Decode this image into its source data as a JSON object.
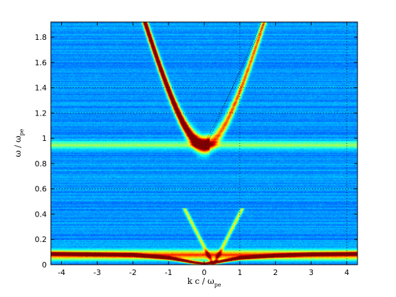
{
  "chart_data": {
    "type": "heatmap",
    "title": "",
    "xlabel": {
      "main": "k c / ω",
      "sub": "pe"
    },
    "ylabel": {
      "main": "ω / ω",
      "sub": "pe"
    },
    "xlim": [
      -4.3,
      4.3
    ],
    "ylim": [
      0,
      1.92
    ],
    "xticks": [
      -4,
      -3,
      -2,
      -1,
      0,
      1,
      2,
      3,
      4
    ],
    "yticks": [
      0,
      0.2,
      0.4,
      0.6,
      0.8,
      1,
      1.2,
      1.4,
      1.6,
      1.8
    ],
    "grid": {
      "dotted_x": [
        1,
        4
      ],
      "dotted_y": [
        0.6,
        1.2,
        1.4
      ]
    },
    "colormap": "jet",
    "features": [
      {
        "name": "em-branch",
        "kind": "hyperbola",
        "omega0": 0.95,
        "c": 1.0,
        "width": 0.06,
        "intensity": 0.95
      },
      {
        "name": "low-freq-branch",
        "kind": "curve",
        "points": [
          [
            -4.3,
            0.09
          ],
          [
            -2,
            0.08
          ],
          [
            -1,
            0.055
          ],
          [
            -0.3,
            0.02
          ],
          [
            0,
            0.01
          ],
          [
            0.4,
            0.025
          ],
          [
            1,
            0.055
          ],
          [
            2,
            0.075
          ],
          [
            3,
            0.085
          ],
          [
            4.3,
            0.09
          ]
        ],
        "width": 0.012,
        "intensity": 0.95
      },
      {
        "name": "low-band-glow",
        "kind": "band",
        "omega": 0.08,
        "width": 0.035,
        "intensity": 0.55
      },
      {
        "name": "plasma-band",
        "kind": "band",
        "omega": 0.95,
        "width": 0.03,
        "intensity": 0.25
      },
      {
        "name": "sound-cone",
        "kind": "lines",
        "slope": 0.55,
        "width": 0.03,
        "intensity": 0.35
      }
    ],
    "reference_lines": [
      {
        "name": "light-line",
        "x": [
          0,
          1.7
        ],
        "y": [
          0.95,
          1.92
        ]
      },
      {
        "name": "light-line-2",
        "x": [
          0,
          1.6
        ],
        "y": [
          0.9,
          1.92
        ]
      }
    ]
  }
}
